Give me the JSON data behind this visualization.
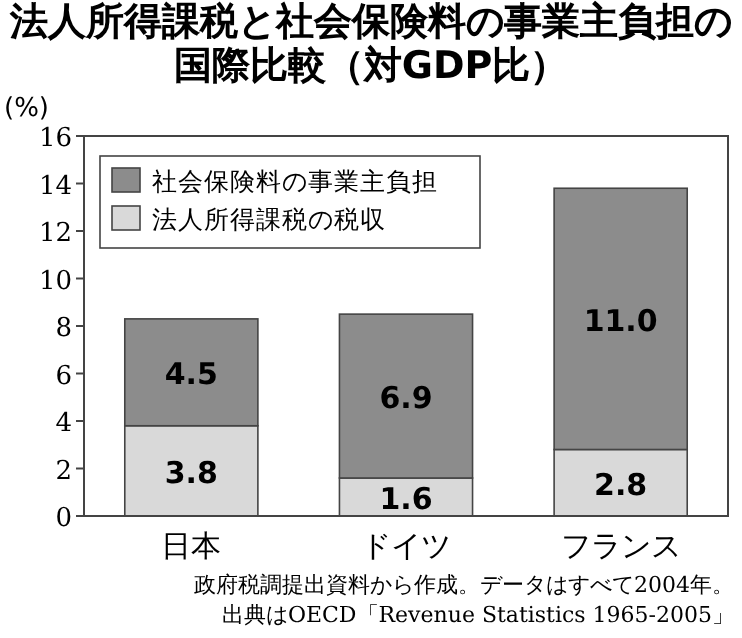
{
  "chart_data": {
    "type": "bar",
    "title": "法人所得課税と社会保険料の事業主負担の国際比較（対GDP比）",
    "ylabel": "(%)",
    "categories": [
      "日本",
      "ドイツ",
      "フランス"
    ],
    "series": [
      {
        "name": "法人所得課税の税収",
        "color": "#d9d9d9",
        "values": [
          3.8,
          1.6,
          2.8
        ],
        "value_labels": [
          "3.8",
          "1.6",
          "2.8"
        ]
      },
      {
        "name": "社会保険料の事業主負担",
        "color": "#8c8c8c",
        "values": [
          4.5,
          6.9,
          11.0
        ],
        "value_labels": [
          "4.5",
          "6.9",
          "11.0"
        ]
      }
    ],
    "stacked": true,
    "ylim": [
      0,
      16
    ],
    "yticks": [
      0,
      2,
      4,
      6,
      8,
      10,
      12,
      14,
      16
    ],
    "legend": "top left",
    "grid": false,
    "annotations": [
      "政府税調提出資料から作成。データはすべて2004年。",
      "出典はOECD「Revenue Statistics 1965-2005」"
    ]
  }
}
